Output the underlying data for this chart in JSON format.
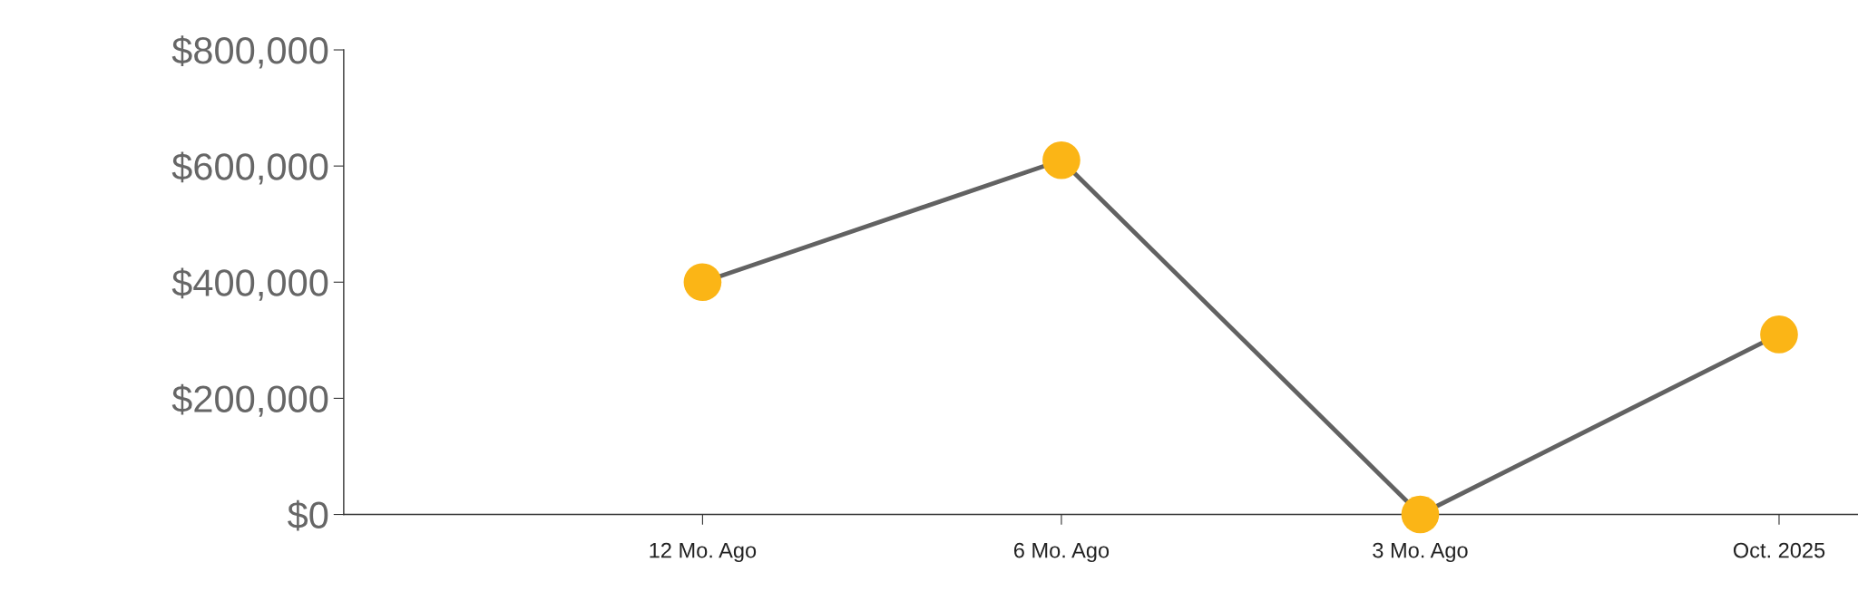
{
  "chart_data": {
    "type": "line",
    "categories": [
      null,
      "12 Mo. Ago",
      "6 Mo. Ago",
      "3 Mo. Ago",
      "Oct. 2025"
    ],
    "series": [
      {
        "color": "#626262",
        "colors": [
          null,
          "#fbb516",
          "#fbb516",
          "#fbb516",
          "#fbb516"
        ],
        "values": [
          null,
          400000,
          610000,
          0,
          310000
        ]
      }
    ],
    "ylim": [
      0,
      800000
    ],
    "yticks": [
      {
        "value": 0,
        "label": "$0"
      },
      {
        "value": 200000,
        "label": "$200,000"
      },
      {
        "value": 400000,
        "label": "$400,000"
      },
      {
        "value": 600000,
        "label": "$600,000"
      },
      {
        "value": 800000,
        "label": "$800,000"
      }
    ],
    "marker": "circle",
    "line_style": "solid",
    "grid": false,
    "legend": false
  }
}
